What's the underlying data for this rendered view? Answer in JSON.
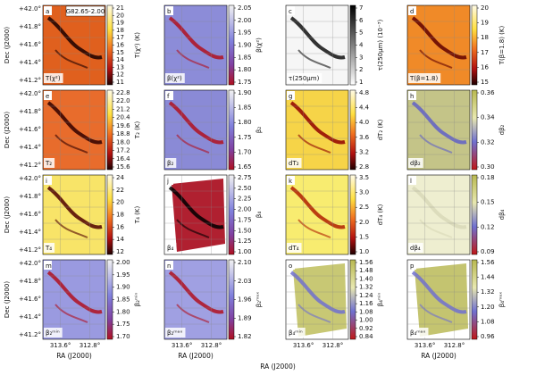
{
  "figure": {
    "region_label": "G82.65-2.00",
    "y_axis": {
      "label": "Dec (J2000)",
      "ticks": [
        "+42.0°",
        "+41.8°",
        "+41.6°",
        "+41.4°",
        "+41.2°"
      ]
    },
    "x_axis": {
      "label": "RA (J2000)",
      "ticks": [
        "313.6°",
        "312.8°"
      ]
    },
    "panels": [
      {
        "letter": "a",
        "label": "T(χ²)",
        "colorbar_label": "T(χ²) (K)",
        "colorbar_ticks": [
          "21",
          "20",
          "19",
          "18",
          "17",
          "16",
          "15",
          "14",
          "13",
          "12",
          "11"
        ]
      },
      {
        "letter": "b",
        "label": "β(χ²)",
        "colorbar_label": "β(χ²)",
        "colorbar_ticks": [
          "2.05",
          "2.00",
          "1.95",
          "1.90",
          "1.85",
          "1.80",
          "1.75"
        ]
      },
      {
        "letter": "c",
        "label": "τ(250μm)",
        "colorbar_label": "τ(250μm) (10⁻³)",
        "colorbar_ticks": [
          "7",
          "6",
          "5",
          "4",
          "3",
          "2",
          "1"
        ]
      },
      {
        "letter": "d",
        "label": "T(β=1.8)",
        "colorbar_label": "T(β=1.8) (K)",
        "colorbar_ticks": [
          "20",
          "19",
          "18",
          "17",
          "16",
          "15"
        ]
      },
      {
        "letter": "e",
        "label": "T₂",
        "colorbar_label": "T₂ (K)",
        "colorbar_ticks": [
          "22.8",
          "22.0",
          "21.2",
          "20.4",
          "19.6",
          "18.8",
          "18.0",
          "17.2",
          "16.4",
          "15.6"
        ]
      },
      {
        "letter": "f",
        "label": "β₂",
        "colorbar_label": "β₂",
        "colorbar_ticks": [
          "1.90",
          "1.85",
          "1.80",
          "1.75",
          "1.70",
          "1.65"
        ]
      },
      {
        "letter": "g",
        "label": "dT₂",
        "colorbar_label": "dT₂ (K)",
        "colorbar_ticks": [
          "4.8",
          "4.4",
          "4.0",
          "3.6",
          "3.2",
          "2.8"
        ]
      },
      {
        "letter": "h",
        "label": "dβ₂",
        "colorbar_label": "dβ₂",
        "colorbar_ticks": [
          "0.36",
          "0.34",
          "0.32",
          "0.30"
        ]
      },
      {
        "letter": "i",
        "label": "T₄",
        "colorbar_label": "T₄ (K)",
        "colorbar_ticks": [
          "24",
          "22",
          "20",
          "18",
          "16",
          "14",
          "12"
        ]
      },
      {
        "letter": "j",
        "label": "β₄",
        "colorbar_label": "β₄",
        "colorbar_ticks": [
          "2.75",
          "2.50",
          "2.25",
          "2.00",
          "1.75",
          "1.50",
          "1.25",
          "1.00"
        ]
      },
      {
        "letter": "k",
        "label": "dT₄",
        "colorbar_label": "dT₄ (K)",
        "colorbar_ticks": [
          "3.5",
          "3.0",
          "2.5",
          "2.0",
          "1.5",
          "1.0"
        ]
      },
      {
        "letter": "l",
        "label": "dβ₄",
        "colorbar_label": "dβ₄",
        "colorbar_ticks": [
          "0.18",
          "0.15",
          "0.12",
          "0.09"
        ]
      },
      {
        "letter": "m",
        "label": "β₂ᵐⁱⁿ",
        "colorbar_label": "β₂ᵐⁱⁿ",
        "colorbar_ticks": [
          "2.00",
          "1.95",
          "1.90",
          "1.85",
          "1.80",
          "1.75",
          "1.70"
        ]
      },
      {
        "letter": "n",
        "label": "β₂ᵐᵃˣ",
        "colorbar_label": "β₂ᵐᵃˣ",
        "colorbar_ticks": [
          "2.10",
          "2.03",
          "1.96",
          "1.89",
          "1.82"
        ]
      },
      {
        "letter": "o",
        "label": "β₄ᵐⁱⁿ",
        "colorbar_label": "β₄ᵐⁱⁿ",
        "colorbar_ticks": [
          "1.56",
          "1.48",
          "1.40",
          "1.32",
          "1.24",
          "1.16",
          "1.08",
          "1.00",
          "0.92",
          "0.84"
        ]
      },
      {
        "letter": "p",
        "label": "β₄ᵐᵃˣ",
        "colorbar_label": "β₄ᵐᵃˣ",
        "colorbar_ticks": [
          "1.56",
          "1.44",
          "1.32",
          "1.20",
          "1.08",
          "0.96"
        ]
      }
    ]
  }
}
